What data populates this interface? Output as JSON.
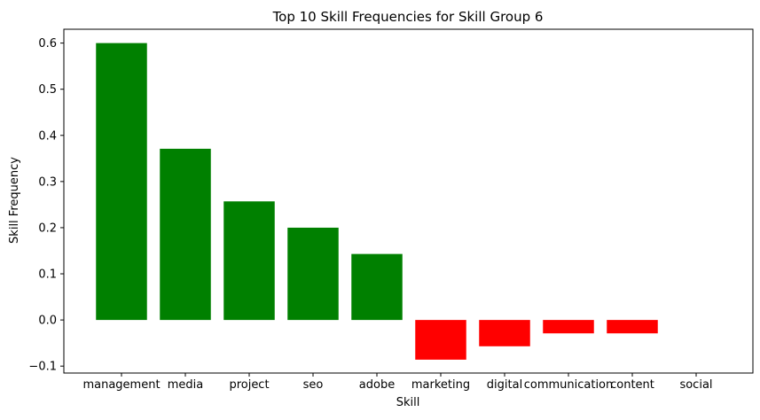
{
  "chart_data": {
    "type": "bar",
    "title": "Top 10 Skill Frequencies for Skill Group 6",
    "xlabel": "Skill",
    "ylabel": "Skill Frequency",
    "categories": [
      "management",
      "media",
      "project",
      "seo",
      "adobe",
      "marketing",
      "digital",
      "communication",
      "content",
      "social"
    ],
    "values": [
      0.6,
      0.371,
      0.257,
      0.2,
      0.143,
      -0.086,
      -0.057,
      -0.029,
      -0.029,
      0.0
    ],
    "colors": [
      "#008000",
      "#008000",
      "#008000",
      "#008000",
      "#008000",
      "#ff0000",
      "#ff0000",
      "#ff0000",
      "#ff0000",
      "#ff0000"
    ],
    "positive_color": "#008000",
    "negative_color": "#ff0000",
    "ylim": [
      -0.115,
      0.63
    ],
    "yticks": [
      -0.1,
      0.0,
      0.1,
      0.2,
      0.3,
      0.4,
      0.5,
      0.6
    ],
    "ytick_labels": [
      "−0.1",
      "0.0",
      "0.1",
      "0.2",
      "0.3",
      "0.4",
      "0.5",
      "0.6"
    ],
    "grid": false,
    "legend": "none"
  }
}
